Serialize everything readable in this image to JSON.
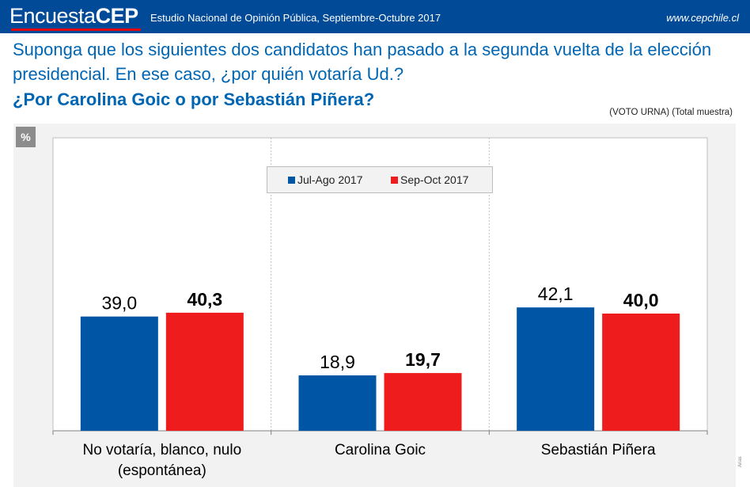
{
  "header": {
    "logo_light": "Encuesta",
    "logo_bold": "CEP",
    "subtitle": "Estudio Nacional de Opinión Pública, Septiembre-Octubre 2017",
    "url": "www.cepchile.cl"
  },
  "question": {
    "line1": "Suponga que los siguientes dos candidatos han pasado a la segunda vuelta de la elección presidencial. En ese caso, ¿por quién votaría Ud.?",
    "line2": "¿Por Carolina Goic o por Sebastián Piñera?",
    "note": "(VOTO URNA) (Total muestra)"
  },
  "unit_badge": "%",
  "side_text": "Arias",
  "colors": {
    "header": "#004a97",
    "accent_red": "#e30613",
    "series1": "#0055a5",
    "series2": "#ee1c1c",
    "question_text": "#0066b3"
  },
  "chart_data": {
    "type": "bar",
    "categories": [
      "No votaría, blanco, nulo (espontánea)",
      "Carolina Goic",
      "Sebastián Piñera"
    ],
    "series": [
      {
        "name": "Jul-Ago 2017",
        "values": [
          39.0,
          18.9,
          42.1
        ],
        "labels": [
          "39,0",
          "18,9",
          "42,1"
        ],
        "color": "#0055a5"
      },
      {
        "name": "Sep-Oct 2017",
        "values": [
          40.3,
          19.7,
          40.0
        ],
        "labels": [
          "40,3",
          "19,7",
          "40,0"
        ],
        "color": "#ee1c1c"
      }
    ],
    "ylim": [
      0,
      100
    ],
    "grid": false,
    "legend": "top-center"
  }
}
